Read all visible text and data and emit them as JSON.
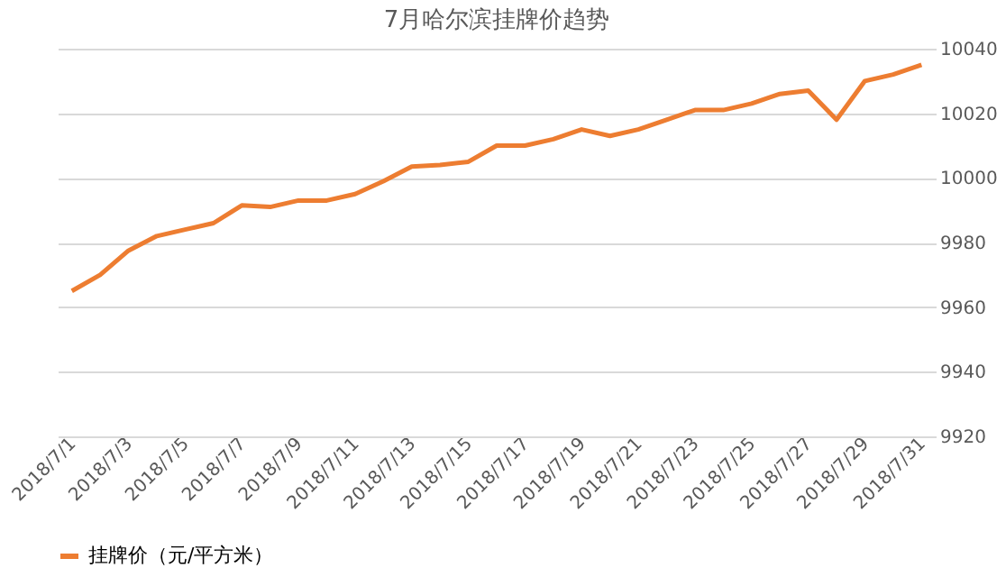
{
  "chart_data": {
    "type": "line",
    "title": "7月哈尔滨挂牌价趋势",
    "categories": [
      "2018/7/1",
      null,
      "2018/7/3",
      null,
      "2018/7/5",
      null,
      "2018/7/7",
      null,
      "2018/7/9",
      null,
      "2018/7/11",
      null,
      "2018/7/13",
      null,
      "2018/7/15",
      null,
      "2018/7/17",
      null,
      "2018/7/19",
      null,
      "2018/7/21",
      null,
      "2018/7/23",
      null,
      "2018/7/25",
      null,
      "2018/7/27",
      null,
      "2018/7/29",
      null,
      "2018/7/31"
    ],
    "series": [
      {
        "name": "挂牌价（元/平方米）",
        "color": "#ed7d31",
        "values": [
          9965,
          9970,
          9977.5,
          9982,
          9984,
          9986,
          9991.5,
          9991,
          9993,
          9993,
          9995,
          9999,
          10003.5,
          10004,
          10005,
          10010,
          10010,
          10012,
          10015,
          10013,
          10015,
          10018,
          10021,
          10021,
          10023,
          10026,
          10027,
          10018,
          10030,
          10032,
          10035
        ]
      }
    ],
    "ylim": [
      9920,
      10040
    ],
    "yticks": [
      9920,
      9940,
      9960,
      9980,
      10000,
      10020,
      10040
    ],
    "grid": "y",
    "legend": "bottom",
    "marker": "none",
    "line_style": "solid"
  }
}
